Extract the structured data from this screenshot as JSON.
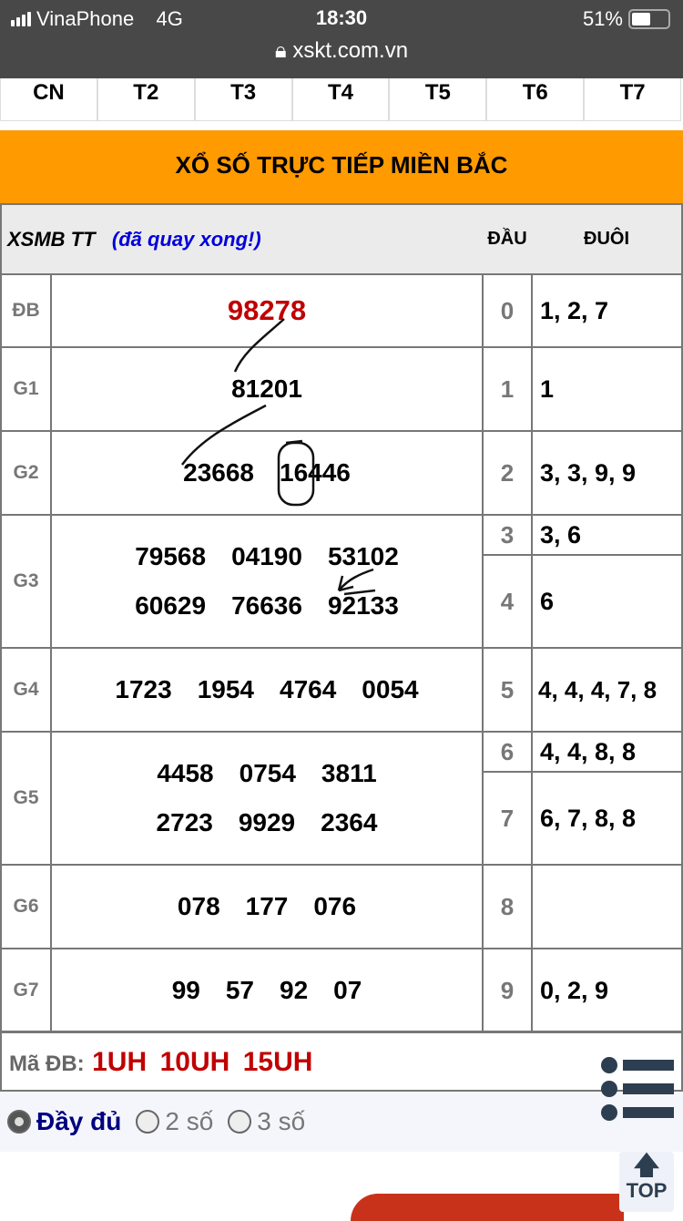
{
  "status_bar": {
    "carrier": "VinaPhone",
    "network": "4G",
    "time": "18:30",
    "battery": "51%",
    "battery_level": 0.51,
    "url": "xskt.com.vn"
  },
  "days": [
    "CN",
    "T2",
    "T3",
    "T4",
    "T5",
    "T6",
    "T7"
  ],
  "banner": "XỔ SỐ TRỰC TIẾP MIỀN BẮC",
  "table": {
    "title": "XSMB TT",
    "status": "(đã quay xong!)",
    "col_dau": "ĐẦU",
    "col_duoi": "ĐUÔI",
    "prizes": [
      {
        "label": "ĐB",
        "numbers": [
          "98278"
        ]
      },
      {
        "label": "G1",
        "numbers": [
          "81201"
        ]
      },
      {
        "label": "G2",
        "numbers": [
          "23668",
          "16446"
        ]
      },
      {
        "label": "G3",
        "numbers": [
          "79568",
          "04190",
          "53102",
          "60629",
          "76636",
          "92133"
        ]
      },
      {
        "label": "G4",
        "numbers": [
          "1723",
          "1954",
          "4764",
          "0054"
        ]
      },
      {
        "label": "G5",
        "numbers": [
          "4458",
          "0754",
          "3811",
          "2723",
          "9929",
          "2364"
        ]
      },
      {
        "label": "G6",
        "numbers": [
          "078",
          "177",
          "076"
        ]
      },
      {
        "label": "G7",
        "numbers": [
          "99",
          "57",
          "92",
          "07"
        ]
      }
    ],
    "dau_duoi": [
      {
        "dau": "0",
        "duoi": "1, 2, 7"
      },
      {
        "dau": "1",
        "duoi": "1"
      },
      {
        "dau": "2",
        "duoi": "3, 3, 9, 9"
      },
      {
        "dau": "3",
        "duoi": "3, 6"
      },
      {
        "dau": "4",
        "duoi": "6"
      },
      {
        "dau": "5",
        "duoi": "4, 4, 4, 7, 8"
      },
      {
        "dau": "6",
        "duoi": "4, 4, 8, 8"
      },
      {
        "dau": "7",
        "duoi": "6, 7, 8, 8"
      },
      {
        "dau": "8",
        "duoi": ""
      },
      {
        "dau": "9",
        "duoi": "0, 2, 9"
      }
    ]
  },
  "ma_db": {
    "label": "Mã ĐB:",
    "codes": [
      "1UH",
      "10UH",
      "15UH"
    ]
  },
  "options": {
    "items": [
      "Đầy đủ",
      "2 số",
      "3 số"
    ],
    "selected": 0
  },
  "top_button": "TOP",
  "colors": {
    "banner": "#ff9a00",
    "special": "#c00000",
    "status": "#0000dd",
    "selected_option": "#000080"
  }
}
